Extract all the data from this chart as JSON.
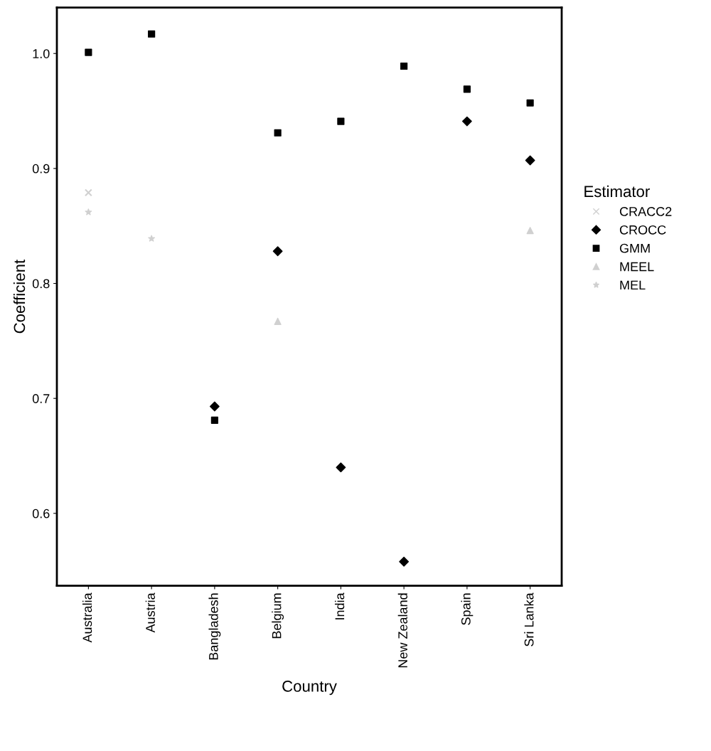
{
  "chart_data": {
    "type": "scatter",
    "xlabel": "Country",
    "ylabel": "Coefficient",
    "legend_title": "Estimator",
    "legend": "right",
    "categories": [
      "Australia",
      "Austria",
      "Bangladesh",
      "Belgium",
      "India",
      "New Zealand",
      "Spain",
      "Sri Lanka"
    ],
    "ylim": [
      0.537,
      1.04
    ],
    "yticks": [
      {
        "value": 0.6,
        "label": "0.6"
      },
      {
        "value": 0.7,
        "label": "0.7"
      },
      {
        "value": 0.8,
        "label": "0.8"
      },
      {
        "value": 0.9,
        "label": "0.9"
      },
      {
        "value": 1.0,
        "label": "1.0"
      }
    ],
    "grid": false,
    "series": [
      {
        "name": "CRACC2",
        "color": "#d0d0d0",
        "marker": "cross",
        "values": [
          0.879,
          null,
          null,
          null,
          null,
          null,
          null,
          null
        ]
      },
      {
        "name": "CROCC",
        "color": "#000000",
        "marker": "diamond",
        "values": [
          null,
          null,
          0.693,
          0.828,
          0.64,
          0.558,
          0.941,
          0.907
        ]
      },
      {
        "name": "GMM",
        "color": "#000000",
        "marker": "square",
        "values": [
          1.001,
          1.017,
          0.681,
          0.931,
          0.941,
          0.989,
          0.969,
          0.957
        ]
      },
      {
        "name": "MEEL",
        "color": "#d0d0d0",
        "marker": "triangle",
        "values": [
          null,
          null,
          null,
          0.767,
          null,
          null,
          null,
          0.846
        ]
      },
      {
        "name": "MEL",
        "color": "#d0d0d0",
        "marker": "star",
        "values": [
          0.862,
          0.839,
          null,
          null,
          null,
          null,
          null,
          null
        ]
      }
    ]
  }
}
